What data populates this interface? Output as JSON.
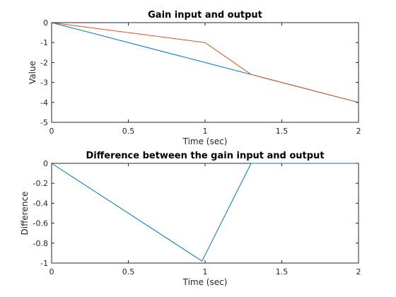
{
  "chart_data": [
    {
      "type": "line",
      "title": "Gain input and output",
      "xlabel": "Time (sec)",
      "ylabel": "Value",
      "xlim": [
        0,
        2
      ],
      "ylim": [
        -5,
        0
      ],
      "xticks": [
        0,
        0.5,
        1,
        1.5,
        2
      ],
      "xtick_labels": [
        "0",
        "0.5",
        "1",
        "1.5",
        "2"
      ],
      "yticks": [
        0,
        -1,
        -2,
        -3,
        -4,
        -5
      ],
      "ytick_labels": [
        "0",
        "-1",
        "-2",
        "-3",
        "-4",
        "-5"
      ],
      "grid": false,
      "series": [
        {
          "color": "#0072BD",
          "x": [
            0,
            1,
            1.3,
            2
          ],
          "y": [
            0,
            -2,
            -2.6,
            -4
          ]
        },
        {
          "color": "#D95319",
          "x": [
            0,
            1,
            1.3,
            2
          ],
          "y": [
            0,
            -1,
            -2.6,
            -4
          ]
        }
      ]
    },
    {
      "type": "line",
      "title": "Difference between the gain input and output",
      "xlabel": "Time (sec)",
      "ylabel": "Difference",
      "xlim": [
        0,
        2
      ],
      "ylim": [
        -1,
        0
      ],
      "xticks": [
        0,
        0.5,
        1,
        1.5,
        2
      ],
      "xtick_labels": [
        "0",
        "0.5",
        "1",
        "1.5",
        "2"
      ],
      "yticks": [
        0,
        -0.2,
        -0.4,
        -0.6,
        -0.8,
        -1
      ],
      "ytick_labels": [
        "0",
        "-0.2",
        "-0.4",
        "-0.6",
        "-0.8",
        "-1"
      ],
      "grid": false,
      "series": [
        {
          "color": "#0072BD",
          "x": [
            0,
            0.98,
            1.3,
            2
          ],
          "y": [
            0,
            -0.98,
            0,
            0
          ]
        }
      ]
    }
  ]
}
